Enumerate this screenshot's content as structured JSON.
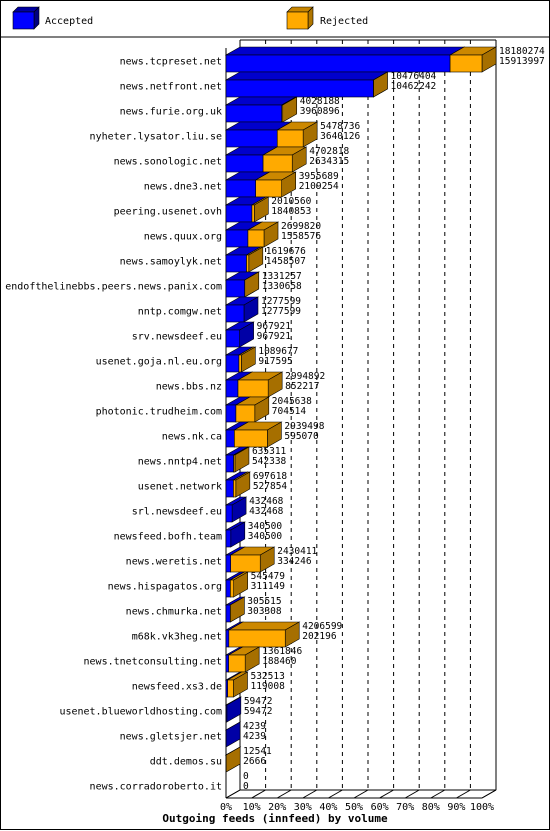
{
  "chart_data": {
    "type": "bar",
    "orientation": "horizontal",
    "stacked": true,
    "title": "",
    "xlabel": "Outgoing feeds (innfeed) by volume",
    "ylabel": "",
    "xlim": [
      0,
      100
    ],
    "x_ticks": [
      "0%",
      "10%",
      "20%",
      "30%",
      "40%",
      "50%",
      "60%",
      "70%",
      "80%",
      "90%",
      "100%"
    ],
    "grid": "vertical dashed",
    "legend_position": "top",
    "series": [
      {
        "name": "Accepted",
        "color": "#0000ff"
      },
      {
        "name": "Rejected",
        "color": "#ffaa00"
      }
    ],
    "categories": [
      "news.tcpreset.net",
      "news.netfront.net",
      "news.furie.org.uk",
      "nyheter.lysator.liu.se",
      "news.sonologic.net",
      "news.dne3.net",
      "peering.usenet.ovh",
      "news.quux.org",
      "news.samoylyk.net",
      "endofthelinebbs.peers.news.panix.com",
      "nntp.comgw.net",
      "srv.newsdeef.eu",
      "usenet.goja.nl.eu.org",
      "news.bbs.nz",
      "photonic.trudheim.com",
      "news.nk.ca",
      "news.nntp4.net",
      "usenet.network",
      "srl.newsdeef.eu",
      "newsfeed.bofh.team",
      "news.weretis.net",
      "news.hispagatos.org",
      "news.chmurka.net",
      "m68k.vk3heg.net",
      "news.tnetconsulting.net",
      "newsfeed.xs3.de",
      "usenet.blueworldhosting.com",
      "news.gletsjer.net",
      "ddt.demos.su",
      "news.corradoroberto.it"
    ],
    "offered": [
      18180274,
      10476404,
      4028188,
      5478736,
      4702818,
      3955689,
      2010560,
      2699820,
      1619676,
      1331257,
      1277599,
      967921,
      1089677,
      2994892,
      2045638,
      2939498,
      635311,
      697618,
      432468,
      340500,
      2430411,
      545479,
      305515,
      4206599,
      1361846,
      532513,
      59472,
      4239,
      12541,
      0
    ],
    "accepted": [
      15913997,
      10462242,
      3960896,
      3640126,
      2634315,
      2109254,
      1840853,
      1558576,
      1458507,
      1330658,
      1277599,
      967921,
      917595,
      852217,
      704514,
      595070,
      542338,
      527854,
      432468,
      340500,
      334246,
      311149,
      303308,
      202196,
      188460,
      119008,
      59472,
      4239,
      2666,
      0
    ]
  },
  "legend": {
    "accepted_label": "Accepted",
    "rejected_label": "Rejected"
  }
}
